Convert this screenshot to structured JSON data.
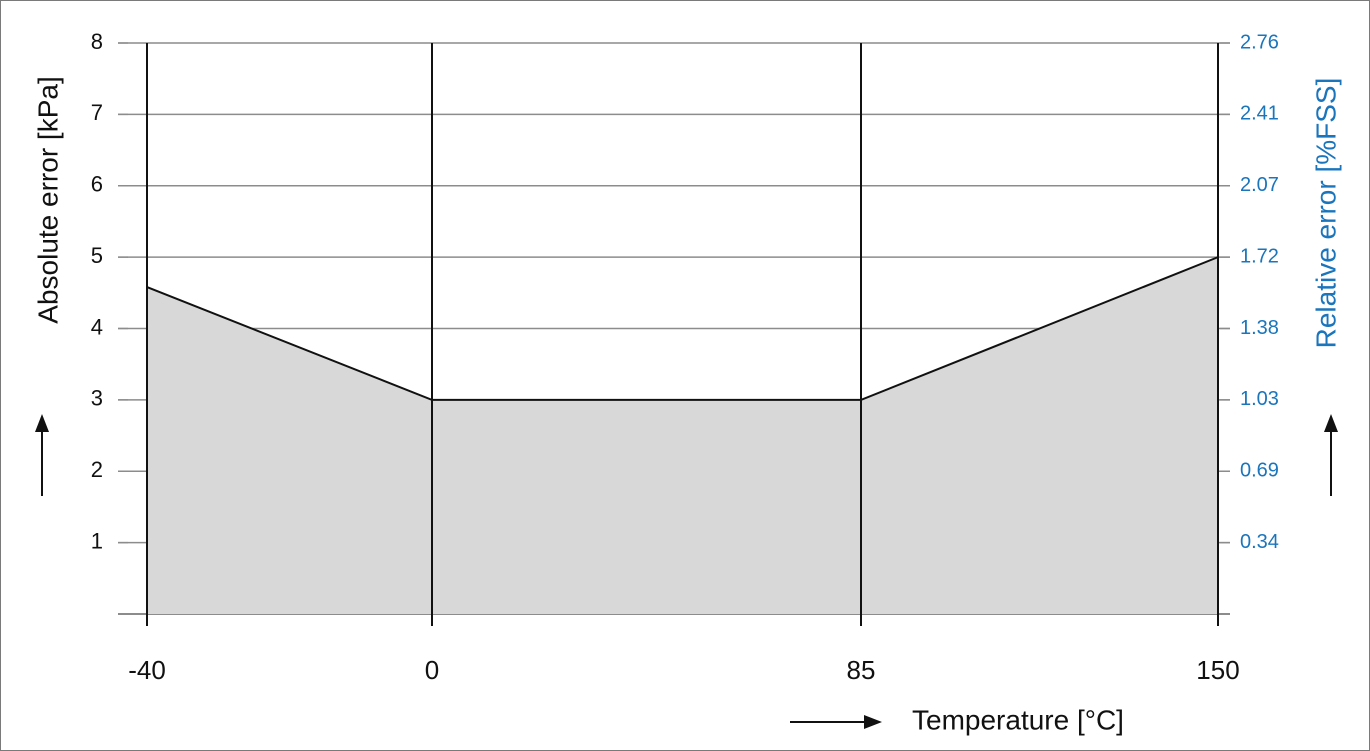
{
  "chart_data": {
    "type": "area",
    "title": "",
    "xlabel": "Temperature [°C]",
    "ylabel": "Absolute error [kPa]",
    "ylabel_right": "Relative error [%FSS]",
    "x_ticks": [
      "-40",
      "0",
      "85",
      "150"
    ],
    "y_ticks": [
      "1",
      "2",
      "3",
      "4",
      "5",
      "6",
      "7",
      "8"
    ],
    "y_right_ticks": [
      "0.34",
      "0.69",
      "1.03",
      "1.38",
      "1.72",
      "2.07",
      "2.41",
      "2.76"
    ],
    "ylim": [
      0,
      8
    ],
    "grid": true,
    "series": [
      {
        "x": [
          -40,
          0,
          85,
          150
        ],
        "y": [
          4.58,
          3,
          3,
          5
        ]
      }
    ],
    "colors": {
      "fill": "#d8d8d8",
      "line": "#111111",
      "grid": "#8c8c8c",
      "right_axis": "#1a75bc"
    }
  }
}
